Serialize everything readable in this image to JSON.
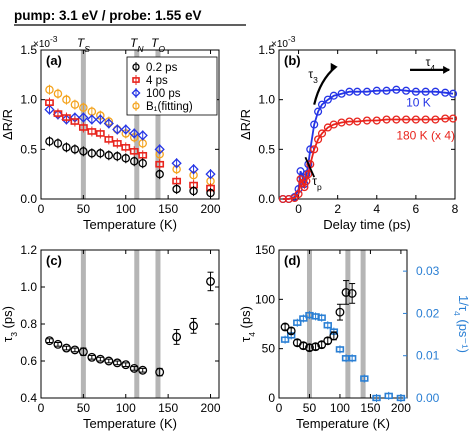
{
  "header": "pump: 3.1 eV / probe: 1.55 eV",
  "colors": {
    "black": "#000000",
    "red": "#e8241d",
    "blue": "#2434e6",
    "orange": "#f4a31d",
    "lightblue": "#2a7fd4",
    "band": "#b5b5b5"
  },
  "chart_data": [
    {
      "panel": "(a)",
      "type": "scatter",
      "xlabel": "Temperature (K)",
      "ylabel": "ΔR/R",
      "multiplier": "×10",
      "multiplier_exp": "-3",
      "xlim": [
        0,
        210
      ],
      "ylim": [
        0,
        1.5
      ],
      "xticks": [
        "0",
        "50",
        "100",
        "150",
        "200"
      ],
      "yticks": [
        "0.0",
        "0.5",
        "1.0",
        "1.5"
      ],
      "transition_lines": [
        {
          "x": 50,
          "label": "T",
          "sub": "S"
        },
        {
          "x": 113,
          "label": "T",
          "sub": "N"
        },
        {
          "x": 138,
          "label": "T",
          "sub": "O"
        }
      ],
      "legend_position": "top-right",
      "series": [
        {
          "name": "0.2 ps",
          "marker": "circle",
          "color": "black",
          "x": [
            10,
            20,
            30,
            40,
            50,
            60,
            70,
            80,
            90,
            100,
            110,
            120,
            140,
            160,
            180,
            200
          ],
          "y": [
            0.58,
            0.56,
            0.52,
            0.5,
            0.48,
            0.46,
            0.46,
            0.44,
            0.43,
            0.41,
            0.38,
            0.36,
            0.25,
            0.1,
            0.08,
            0.06
          ]
        },
        {
          "name": "4 ps",
          "marker": "square",
          "color": "red",
          "x": [
            10,
            20,
            30,
            40,
            50,
            60,
            70,
            80,
            90,
            100,
            110,
            120,
            140,
            160,
            180,
            200
          ],
          "y": [
            0.97,
            0.86,
            0.82,
            0.78,
            0.72,
            0.68,
            0.66,
            0.6,
            0.56,
            0.52,
            0.48,
            0.44,
            0.35,
            0.18,
            0.14,
            0.11
          ]
        },
        {
          "name": "100 ps",
          "marker": "diamond",
          "color": "blue",
          "x": [
            10,
            20,
            30,
            40,
            50,
            60,
            70,
            80,
            90,
            100,
            110,
            120,
            140,
            160,
            180,
            200
          ],
          "y": [
            0.9,
            0.85,
            0.8,
            0.82,
            0.82,
            0.8,
            0.8,
            0.76,
            0.7,
            0.7,
            0.66,
            0.64,
            0.5,
            0.36,
            0.3,
            0.25
          ]
        },
        {
          "name": "B₁(fitting)",
          "marker": "circle",
          "color": "orange",
          "x": [
            10,
            20,
            30,
            40,
            50,
            60,
            70,
            80,
            90,
            100,
            110,
            120,
            140,
            160,
            180,
            200
          ],
          "y": [
            1.1,
            1.06,
            1.0,
            0.95,
            0.92,
            0.88,
            0.84,
            0.78,
            0.7,
            0.66,
            0.62,
            0.56,
            0.45,
            0.3,
            0.24,
            0.18
          ]
        }
      ]
    },
    {
      "panel": "(b)",
      "type": "line",
      "xlabel": "Delay time (ps)",
      "ylabel": "ΔR/R",
      "multiplier": "×10",
      "multiplier_exp": "-3",
      "xlim": [
        -1,
        8
      ],
      "ylim": [
        0,
        1.5
      ],
      "xticks": [
        "0",
        "2",
        "4",
        "6",
        "8"
      ],
      "yticks": [
        "0.0",
        "0.5",
        "1.0",
        "1.5"
      ],
      "annotations": [
        "τ",
        "τ",
        "τ"
      ],
      "annotation_subs": [
        "3",
        "4",
        "p"
      ],
      "series": [
        {
          "name": "10 K",
          "marker": "circle",
          "color": "blue",
          "x": [
            -0.8,
            -0.5,
            -0.2,
            0.0,
            0.1,
            0.2,
            0.3,
            0.4,
            0.5,
            0.6,
            0.8,
            1.0,
            1.2,
            1.5,
            1.8,
            2.2,
            2.6,
            3.0,
            3.5,
            4.0,
            4.5,
            5.0,
            5.5,
            6.0,
            6.5,
            7.0,
            7.5,
            7.9
          ],
          "y": [
            0.0,
            0.0,
            0.02,
            0.1,
            0.28,
            0.22,
            0.15,
            0.25,
            0.35,
            0.5,
            0.75,
            0.88,
            0.95,
            1.0,
            1.04,
            1.06,
            1.08,
            1.08,
            1.08,
            1.09,
            1.09,
            1.1,
            1.09,
            1.08,
            1.08,
            1.08,
            1.07,
            1.06
          ]
        },
        {
          "name": "180 K (x 4)",
          "marker": "circle",
          "color": "red",
          "x": [
            -0.8,
            -0.5,
            -0.2,
            0.0,
            0.1,
            0.2,
            0.3,
            0.4,
            0.5,
            0.6,
            0.8,
            1.0,
            1.2,
            1.5,
            1.8,
            2.2,
            2.6,
            3.0,
            3.5,
            4.0,
            4.5,
            5.0,
            5.5,
            6.0,
            6.5,
            7.0,
            7.5,
            7.9
          ],
          "y": [
            0.0,
            0.0,
            0.01,
            0.05,
            0.2,
            0.16,
            0.12,
            0.18,
            0.25,
            0.35,
            0.5,
            0.6,
            0.66,
            0.72,
            0.75,
            0.77,
            0.78,
            0.78,
            0.79,
            0.79,
            0.8,
            0.8,
            0.8,
            0.8,
            0.8,
            0.8,
            0.81,
            0.81
          ]
        }
      ]
    },
    {
      "panel": "(c)",
      "type": "scatter",
      "xlabel": "Temperature (K)",
      "ylabel": "τ",
      "ylabel_sub": "3",
      "ylabel_unit": "(ps)",
      "xlim": [
        0,
        210
      ],
      "ylim": [
        0.4,
        1.2
      ],
      "xticks": [
        "0",
        "50",
        "100",
        "150",
        "200"
      ],
      "yticks": [
        "0.4",
        "0.6",
        "0.8",
        "1.0",
        "1.2"
      ],
      "transition_lines": [
        {
          "x": 50
        },
        {
          "x": 113
        },
        {
          "x": 138
        }
      ],
      "series": [
        {
          "marker": "circle",
          "color": "black",
          "x": [
            10,
            20,
            30,
            40,
            50,
            60,
            70,
            80,
            90,
            100,
            110,
            120,
            140,
            160,
            180,
            200
          ],
          "y": [
            0.71,
            0.69,
            0.67,
            0.66,
            0.65,
            0.62,
            0.61,
            0.6,
            0.59,
            0.58,
            0.56,
            0.55,
            0.54,
            0.73,
            0.79,
            1.03
          ],
          "err": [
            0.01,
            0.01,
            0.01,
            0.01,
            0.02,
            0.01,
            0.01,
            0.01,
            0.01,
            0.01,
            0.01,
            0.01,
            0.02,
            0.04,
            0.04,
            0.05
          ]
        }
      ]
    },
    {
      "panel": "(d)",
      "type": "scatter",
      "xlabel": "Temperature (K)",
      "ylabel": "τ",
      "ylabel_sub": "4",
      "ylabel_unit": "(ps)",
      "y2label": "1/τ",
      "y2label_sub": "4",
      "y2label_unit": "(ps⁻¹)",
      "xlim": [
        0,
        210
      ],
      "ylim": [
        0,
        150
      ],
      "y2lim": [
        0,
        0.035
      ],
      "xticks": [
        "0",
        "50",
        "100",
        "150",
        "200"
      ],
      "yticks": [
        "0",
        "50",
        "100",
        "150"
      ],
      "y2ticks": [
        "0.00",
        "0.01",
        "0.02",
        "0.03"
      ],
      "transition_lines": [
        {
          "x": 50
        },
        {
          "x": 113
        },
        {
          "x": 138
        }
      ],
      "series": [
        {
          "axis": "left",
          "marker": "circle",
          "color": "black",
          "x": [
            10,
            20,
            30,
            40,
            50,
            60,
            70,
            80,
            90,
            100,
            110,
            120
          ],
          "y": [
            72,
            68,
            56,
            53,
            51,
            52,
            54,
            58,
            63,
            87,
            107,
            106
          ],
          "err": [
            3,
            3,
            3,
            3,
            3,
            3,
            3,
            3,
            4,
            8,
            12,
            10
          ]
        },
        {
          "axis": "right",
          "marker": "square",
          "color": "lightblue",
          "x": [
            10,
            20,
            30,
            40,
            50,
            60,
            70,
            80,
            90,
            100,
            110,
            120,
            140,
            160,
            180,
            200
          ],
          "y": [
            0.0138,
            0.0148,
            0.0178,
            0.0188,
            0.0196,
            0.0193,
            0.019,
            0.0172,
            0.0157,
            0.0115,
            0.0094,
            0.0094,
            0.0046,
            0.0,
            0.0005,
            0.0
          ]
        }
      ]
    }
  ]
}
